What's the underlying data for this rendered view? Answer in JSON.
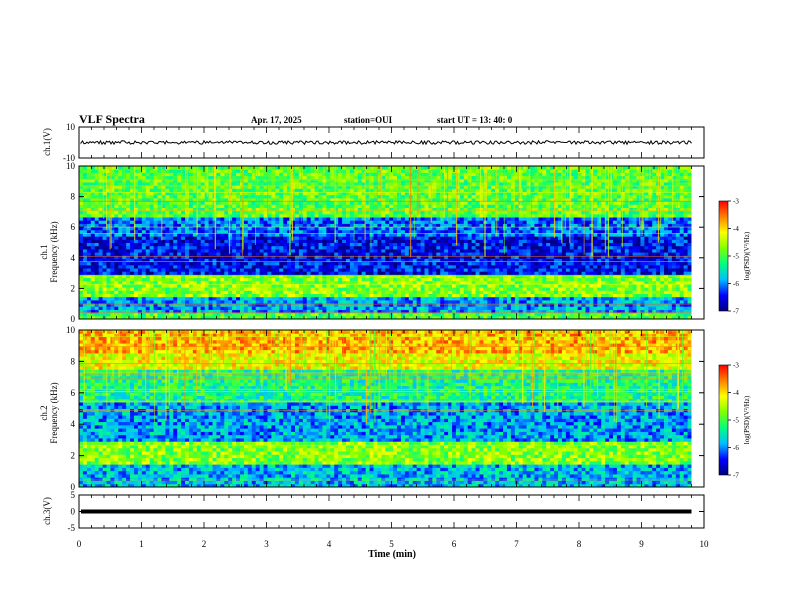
{
  "header": {
    "title": "VLF Spectra",
    "date": "Apr. 17, 2025",
    "station": "station=OUI",
    "start": "start UT = 13: 40: 0"
  },
  "chart_data": [
    {
      "type": "line",
      "panel": "ch1_waveform",
      "ylabel": "ch.1(V)",
      "ylim": [
        -10,
        10
      ],
      "yticks": [
        "10",
        "-10"
      ],
      "xlim": [
        0,
        10
      ],
      "baseline": 0,
      "series": [
        {
          "x": [
            0,
            9.8
          ],
          "values": [
            0,
            0
          ]
        }
      ]
    },
    {
      "type": "heatmap",
      "panel": "ch1_spectrogram",
      "ylabel": "ch.1 Frequency (kHz)",
      "ylim": [
        0,
        10
      ],
      "yticks": [
        "0",
        "2",
        "4",
        "6",
        "8",
        "10"
      ],
      "xlim": [
        0,
        10
      ],
      "data_xmax": 9.8,
      "bands": [
        {
          "from": 0,
          "to": 0.5,
          "level": -5.0
        },
        {
          "from": 0.5,
          "to": 1.5,
          "level": -5.9
        },
        {
          "from": 1.5,
          "to": 3.0,
          "level": -4.7
        },
        {
          "from": 3.0,
          "to": 5.5,
          "level": -6.5
        },
        {
          "from": 5.5,
          "to": 6.7,
          "level": -6.1
        },
        {
          "from": 6.7,
          "to": 10,
          "level": -4.9
        }
      ],
      "colorbar": {
        "label": "log(PSD)(V²/Hz)",
        "range": [
          -7,
          -3
        ],
        "ticks": [
          "-3",
          "-4",
          "-5",
          "-6",
          "-7"
        ]
      }
    },
    {
      "type": "heatmap",
      "panel": "ch2_spectrogram",
      "ylabel": "ch.2 Frequency (kHz)",
      "ylim": [
        0,
        10
      ],
      "yticks": [
        "0",
        "2",
        "4",
        "6",
        "8",
        "10"
      ],
      "xlim": [
        0,
        10
      ],
      "data_xmax": 9.8,
      "bands": [
        {
          "from": 0,
          "to": 1.5,
          "level": -5.8
        },
        {
          "from": 1.5,
          "to": 3.0,
          "level": -4.7
        },
        {
          "from": 3.0,
          "to": 5.5,
          "level": -5.9
        },
        {
          "from": 5.5,
          "to": 7.5,
          "level": -5.3
        },
        {
          "from": 7.5,
          "to": 8.6,
          "level": -4.2
        },
        {
          "from": 8.6,
          "to": 10,
          "level": -3.8
        }
      ],
      "colorbar": {
        "label": "log(PSD)(V²/Hz)",
        "range": [
          -7,
          -3
        ],
        "ticks": [
          "-3",
          "-4",
          "-5",
          "-6",
          "-7"
        ]
      }
    },
    {
      "type": "line",
      "panel": "ch3_waveform",
      "ylabel": "ch.3(V)",
      "ylim": [
        -5,
        5
      ],
      "yticks": [
        "5",
        "0",
        "-5"
      ],
      "xlim": [
        0,
        10
      ],
      "baseline": 0,
      "series": [
        {
          "x": [
            0,
            9.8
          ],
          "values": [
            0,
            0
          ]
        }
      ]
    }
  ],
  "xaxis": {
    "label": "Time (min)",
    "ticks": [
      "0",
      "1",
      "2",
      "3",
      "4",
      "5",
      "6",
      "7",
      "8",
      "9",
      "10"
    ]
  },
  "colors": {
    "colormap": [
      "#00007f",
      "#0000ff",
      "#00bfff",
      "#00ff80",
      "#80ff00",
      "#ffff00",
      "#ff8000",
      "#ff0000"
    ]
  }
}
